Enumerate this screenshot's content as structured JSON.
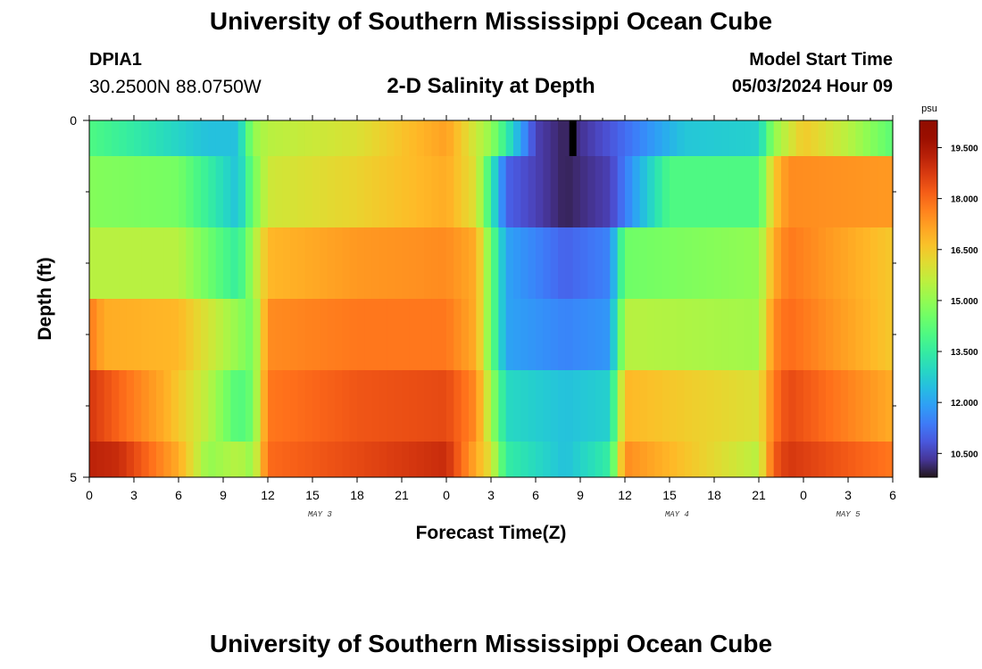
{
  "header": {
    "title": "University of Southern Mississippi Ocean Cube",
    "station_id": "DPIA1",
    "station_coords": "30.2500N  88.0750W",
    "subtitle": "2-D Salinity at Depth",
    "model_start_label": "Model Start Time",
    "model_start_value": "05/03/2024 Hour 09"
  },
  "footer": {
    "title": "University of Southern Mississippi Ocean Cube"
  },
  "colors": {
    "colormap": "turbo",
    "background": "#ffffff",
    "marker": "#000000"
  },
  "chart_data": {
    "type": "heatmap",
    "title": "2-D Salinity at Depth",
    "xlabel": "Forecast Time(Z)",
    "ylabel": "Depth (ft)",
    "colorbar_label": "psu",
    "x_tick_labels": [
      "0",
      "3",
      "6",
      "9",
      "12",
      "15",
      "18",
      "21",
      "0",
      "3",
      "6",
      "9",
      "12",
      "15",
      "18",
      "21",
      "0",
      "3",
      "6"
    ],
    "x_date_labels": [
      "MAY 3",
      "MAY 4",
      "MAY 5"
    ],
    "y_tick_labels": [
      "0",
      "5"
    ],
    "ylim": [
      0,
      5
    ],
    "x_hours_range": [
      0,
      54
    ],
    "colorbar_ticks": [
      "19.500",
      "18.000",
      "16.500",
      "15.000",
      "13.500",
      "12.000",
      "10.500"
    ],
    "colorbar_range": [
      9.8,
      20.3
    ],
    "current_time_marker_hour": 32.5,
    "rows": [
      {
        "depth_range": [
          0,
          0.5
        ],
        "hour_nodes": [
          0,
          8,
          10,
          11,
          12,
          18,
          24,
          27,
          30,
          32,
          35,
          40,
          45,
          46,
          48,
          51,
          54
        ],
        "salinity": [
          14.0,
          12.5,
          12.5,
          15.0,
          15.5,
          16.0,
          17.2,
          15.0,
          10.5,
          10.0,
          10.8,
          12.6,
          12.8,
          15.0,
          16.5,
          15.5,
          14.2
        ]
      },
      {
        "depth_range": [
          0.5,
          1.5
        ],
        "hour_nodes": [
          0,
          6,
          10,
          11,
          12,
          18,
          24,
          26,
          28,
          32,
          35,
          39,
          45,
          46,
          47,
          54
        ],
        "salinity": [
          14.8,
          14.6,
          12.5,
          14.5,
          15.8,
          16.3,
          17.0,
          16.0,
          11.0,
          10.0,
          10.5,
          14.0,
          14.0,
          16.5,
          17.5,
          17.3
        ]
      },
      {
        "depth_range": [
          1.5,
          2.5
        ],
        "hour_nodes": [
          0,
          6,
          10,
          11,
          12,
          18,
          24,
          26,
          28,
          32,
          35,
          36,
          45,
          46,
          47,
          54
        ],
        "salinity": [
          15.5,
          15.5,
          13.5,
          15.2,
          16.8,
          17.3,
          17.5,
          17.0,
          12.0,
          11.0,
          11.5,
          14.5,
          15.0,
          17.0,
          17.8,
          16.5
        ]
      },
      {
        "depth_range": [
          2.5,
          3.5
        ],
        "hour_nodes": [
          0,
          1,
          6,
          10,
          11,
          12,
          18,
          24,
          26,
          28,
          32,
          35,
          36,
          45,
          46,
          47,
          54
        ],
        "salinity": [
          17.8,
          17.0,
          16.8,
          15.0,
          14.5,
          17.5,
          17.8,
          17.8,
          17.0,
          12.0,
          11.5,
          11.8,
          15.5,
          15.2,
          17.5,
          18.0,
          16.5
        ]
      },
      {
        "depth_range": [
          3.5,
          4.5
        ],
        "hour_nodes": [
          0,
          5,
          8,
          10,
          11,
          12,
          18,
          24,
          26,
          28,
          32,
          35,
          36,
          45,
          46,
          47,
          54
        ],
        "salinity": [
          18.8,
          17.0,
          15.5,
          14.0,
          14.5,
          17.8,
          18.3,
          18.5,
          17.5,
          13.0,
          12.5,
          12.8,
          16.8,
          16.0,
          17.8,
          18.5,
          17.0
        ]
      },
      {
        "depth_range": [
          4.5,
          5
        ],
        "hour_nodes": [
          0,
          2,
          6,
          8,
          10,
          11,
          12,
          18,
          24,
          27,
          28,
          32,
          35,
          36,
          45,
          46,
          47,
          54
        ],
        "salinity": [
          19.2,
          19.0,
          17.0,
          15.0,
          15.5,
          15.0,
          18.0,
          18.5,
          19.0,
          16.0,
          13.5,
          12.5,
          13.5,
          17.5,
          15.5,
          18.2,
          18.8,
          17.8
        ]
      }
    ]
  }
}
